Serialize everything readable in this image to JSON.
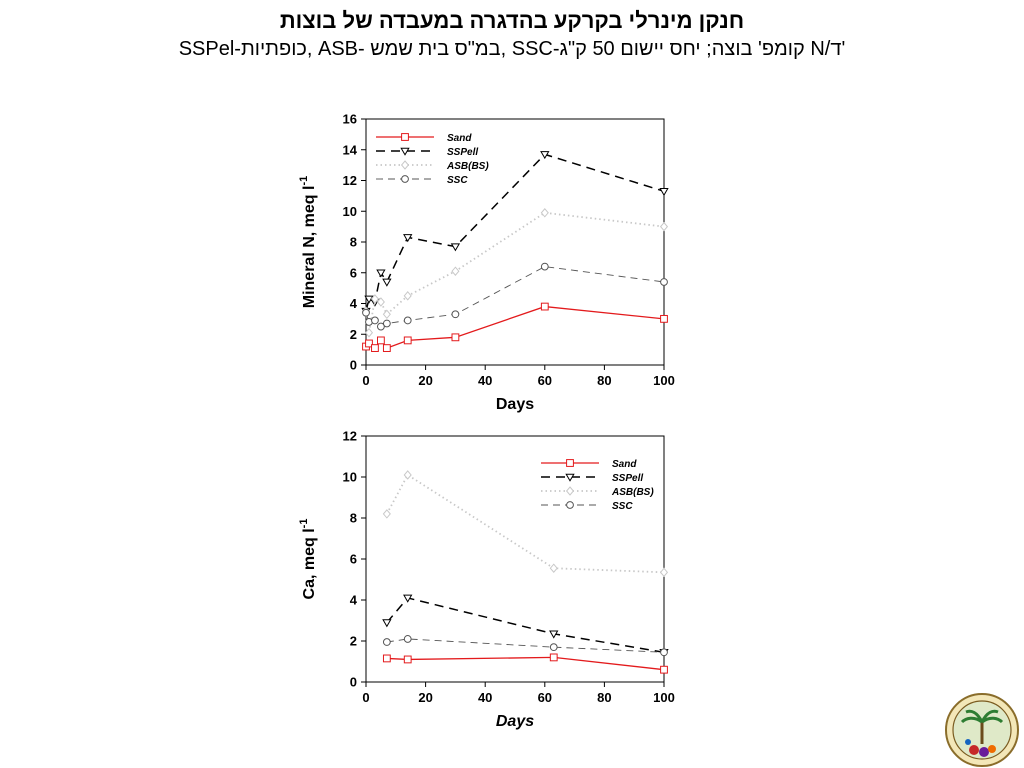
{
  "slide": {
    "title": "חנקן מינרלי בקרקע בהדגרה במעבדה של בוצות",
    "subtitle": "SSPel-כופתיות, ASB- במ\"ס בית שמש, SSC-קומפ' בוצה; יחס יישום 50 ק\"ג N/ד'"
  },
  "colors": {
    "sand": "#e31a1c",
    "black": "#000000",
    "gray": "#555555",
    "dotted": "#c8c8c8"
  },
  "chart_data": [
    {
      "type": "line",
      "xlabel": "Days",
      "ylabel": "Mineral N, meq l",
      "ylabel_sup": "-1",
      "xlim": [
        0,
        100
      ],
      "ylim": [
        0,
        16
      ],
      "xticks": [
        0,
        20,
        40,
        60,
        80,
        100
      ],
      "yticks": [
        0,
        2,
        4,
        6,
        8,
        10,
        12,
        14,
        16
      ],
      "grid": false,
      "legend_position": "top-left",
      "series": [
        {
          "name": "Sand",
          "marker": "square",
          "style": "solid",
          "color": "#e31a1c",
          "x": [
            0,
            1,
            3,
            5,
            7,
            14,
            30,
            60,
            100
          ],
          "y": [
            1.2,
            1.4,
            1.1,
            1.6,
            1.1,
            1.6,
            1.8,
            3.8,
            3.0
          ]
        },
        {
          "name": "SSPell",
          "marker": "triangle-down",
          "style": "dashed",
          "color": "#000000",
          "x": [
            0,
            1,
            3,
            5,
            7,
            14,
            30,
            60,
            100
          ],
          "y": [
            3.5,
            4.3,
            4.1,
            6.0,
            5.4,
            8.3,
            7.7,
            13.7,
            11.3
          ]
        },
        {
          "name": "ASB(BS)",
          "marker": "diamond",
          "style": "dotted",
          "color": "#c8c8c8",
          "x": [
            0,
            1,
            3,
            5,
            7,
            14,
            30,
            60,
            100
          ],
          "y": [
            3.5,
            2.1,
            4.3,
            4.1,
            3.3,
            4.5,
            6.1,
            9.9,
            9.0
          ]
        },
        {
          "name": "SSC",
          "marker": "circle",
          "style": "dashed-gray",
          "color": "#555555",
          "x": [
            0,
            1,
            3,
            5,
            7,
            14,
            30,
            60,
            100
          ],
          "y": [
            3.4,
            2.8,
            2.9,
            2.5,
            2.7,
            2.9,
            3.3,
            6.4,
            5.4
          ]
        }
      ]
    },
    {
      "type": "line",
      "xlabel": "Days",
      "ylabel": "Ca, meq l",
      "ylabel_sup": "-1",
      "xlim": [
        0,
        100
      ],
      "ylim": [
        0,
        12
      ],
      "xticks": [
        0,
        20,
        40,
        60,
        80,
        100
      ],
      "yticks": [
        0,
        2,
        4,
        6,
        8,
        10,
        12
      ],
      "grid": false,
      "legend_position": "top-right",
      "series": [
        {
          "name": "Sand",
          "marker": "square",
          "style": "solid",
          "color": "#e31a1c",
          "x": [
            7,
            14,
            63,
            100
          ],
          "y": [
            1.15,
            1.1,
            1.2,
            0.6
          ]
        },
        {
          "name": "SSPell",
          "marker": "triangle-down",
          "style": "dashed",
          "color": "#000000",
          "x": [
            7,
            14,
            63,
            100
          ],
          "y": [
            2.9,
            4.1,
            2.35,
            1.45
          ]
        },
        {
          "name": "ASB(BS)",
          "marker": "diamond",
          "style": "dotted",
          "color": "#c8c8c8",
          "x": [
            7,
            14,
            63,
            100
          ],
          "y": [
            8.2,
            10.1,
            5.55,
            5.35
          ]
        },
        {
          "name": "SSC",
          "marker": "circle",
          "style": "dashed-gray",
          "color": "#555555",
          "x": [
            7,
            14,
            63,
            100
          ],
          "y": [
            1.95,
            2.1,
            1.7,
            1.45
          ]
        }
      ]
    }
  ],
  "logo": {
    "icon": "emblem-seal-icon"
  }
}
